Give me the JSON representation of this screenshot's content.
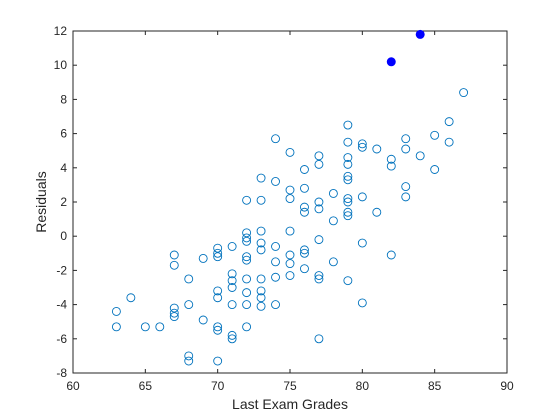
{
  "chart_data": {
    "type": "scatter",
    "xlabel": "Last Exam Grades",
    "ylabel": "Residuals",
    "xlim": [
      60,
      90
    ],
    "ylim": [
      -8,
      12
    ],
    "x_ticks": [
      60,
      65,
      70,
      75,
      80,
      85,
      90
    ],
    "y_ticks": [
      -8,
      -6,
      -4,
      -2,
      0,
      2,
      4,
      6,
      8,
      10,
      12
    ],
    "grid": false,
    "box": true,
    "colors": {
      "open_markers": "#0072BD",
      "filled_markers": "#0000FF",
      "axes": "#262626"
    },
    "series": [
      {
        "marker": "open-circle",
        "points": [
          [
            63,
            -4.4
          ],
          [
            63,
            -5.3
          ],
          [
            64,
            -3.6
          ],
          [
            65,
            -5.3
          ],
          [
            66,
            -5.3
          ],
          [
            67,
            -1.1
          ],
          [
            67,
            -1.7
          ],
          [
            67,
            -4.2
          ],
          [
            67,
            -4.5
          ],
          [
            67,
            -4.7
          ],
          [
            68,
            -2.5
          ],
          [
            68,
            -4.0
          ],
          [
            68,
            -7.0
          ],
          [
            68,
            -7.3
          ],
          [
            69,
            -1.3
          ],
          [
            69,
            -4.9
          ],
          [
            70,
            -0.7
          ],
          [
            70,
            -1.0
          ],
          [
            70,
            -1.2
          ],
          [
            70,
            -3.2
          ],
          [
            70,
            -3.6
          ],
          [
            70,
            -5.3
          ],
          [
            70,
            -5.5
          ],
          [
            70,
            -7.3
          ],
          [
            71,
            -0.6
          ],
          [
            71,
            -2.2
          ],
          [
            71,
            -2.6
          ],
          [
            71,
            -3.0
          ],
          [
            71,
            -4.0
          ],
          [
            71,
            -5.8
          ],
          [
            71,
            -6.0
          ],
          [
            72,
            2.1
          ],
          [
            72,
            0.2
          ],
          [
            72,
            -0.1
          ],
          [
            72,
            -0.3
          ],
          [
            72,
            -1.2
          ],
          [
            72,
            -1.4
          ],
          [
            72,
            -2.5
          ],
          [
            72,
            -3.3
          ],
          [
            72,
            -4.0
          ],
          [
            72,
            -5.3
          ],
          [
            73,
            3.4
          ],
          [
            73,
            2.1
          ],
          [
            73,
            0.3
          ],
          [
            73,
            -0.4
          ],
          [
            73,
            -0.8
          ],
          [
            73,
            -2.5
          ],
          [
            73,
            -3.2
          ],
          [
            73,
            -3.6
          ],
          [
            73,
            -4.1
          ],
          [
            74,
            5.7
          ],
          [
            74,
            3.2
          ],
          [
            74,
            -0.6
          ],
          [
            74,
            -1.5
          ],
          [
            74,
            -2.4
          ],
          [
            74,
            -4.0
          ],
          [
            75,
            4.9
          ],
          [
            75,
            2.7
          ],
          [
            75,
            2.2
          ],
          [
            75,
            0.3
          ],
          [
            75,
            -1.1
          ],
          [
            75,
            -1.6
          ],
          [
            75,
            -2.3
          ],
          [
            76,
            3.9
          ],
          [
            76,
            2.8
          ],
          [
            76,
            1.7
          ],
          [
            76,
            1.4
          ],
          [
            76,
            -0.8
          ],
          [
            76,
            -1.0
          ],
          [
            76,
            -1.9
          ],
          [
            77,
            4.7
          ],
          [
            77,
            4.2
          ],
          [
            77,
            2.0
          ],
          [
            77,
            1.6
          ],
          [
            77,
            -0.2
          ],
          [
            77,
            -2.3
          ],
          [
            77,
            -2.5
          ],
          [
            77,
            -6.0
          ],
          [
            78,
            2.5
          ],
          [
            78,
            0.9
          ],
          [
            78,
            -1.5
          ],
          [
            79,
            6.5
          ],
          [
            79,
            5.5
          ],
          [
            79,
            4.6
          ],
          [
            79,
            4.2
          ],
          [
            79,
            3.5
          ],
          [
            79,
            3.3
          ],
          [
            79,
            2.2
          ],
          [
            79,
            2.0
          ],
          [
            79,
            1.4
          ],
          [
            79,
            1.2
          ],
          [
            79,
            -2.6
          ],
          [
            80,
            5.4
          ],
          [
            80,
            5.2
          ],
          [
            80,
            2.3
          ],
          [
            80,
            -0.4
          ],
          [
            80,
            -3.9
          ],
          [
            81,
            5.1
          ],
          [
            81,
            1.4
          ],
          [
            82,
            4.5
          ],
          [
            82,
            4.1
          ],
          [
            82,
            -1.1
          ],
          [
            83,
            5.7
          ],
          [
            83,
            5.1
          ],
          [
            83,
            2.9
          ],
          [
            83,
            2.3
          ],
          [
            84,
            4.7
          ],
          [
            85,
            5.9
          ],
          [
            85,
            3.9
          ],
          [
            86,
            6.7
          ],
          [
            86,
            5.5
          ],
          [
            87,
            8.4
          ]
        ]
      },
      {
        "marker": "filled-circle",
        "points": [
          [
            82,
            10.2
          ],
          [
            84,
            11.8
          ]
        ]
      }
    ]
  }
}
